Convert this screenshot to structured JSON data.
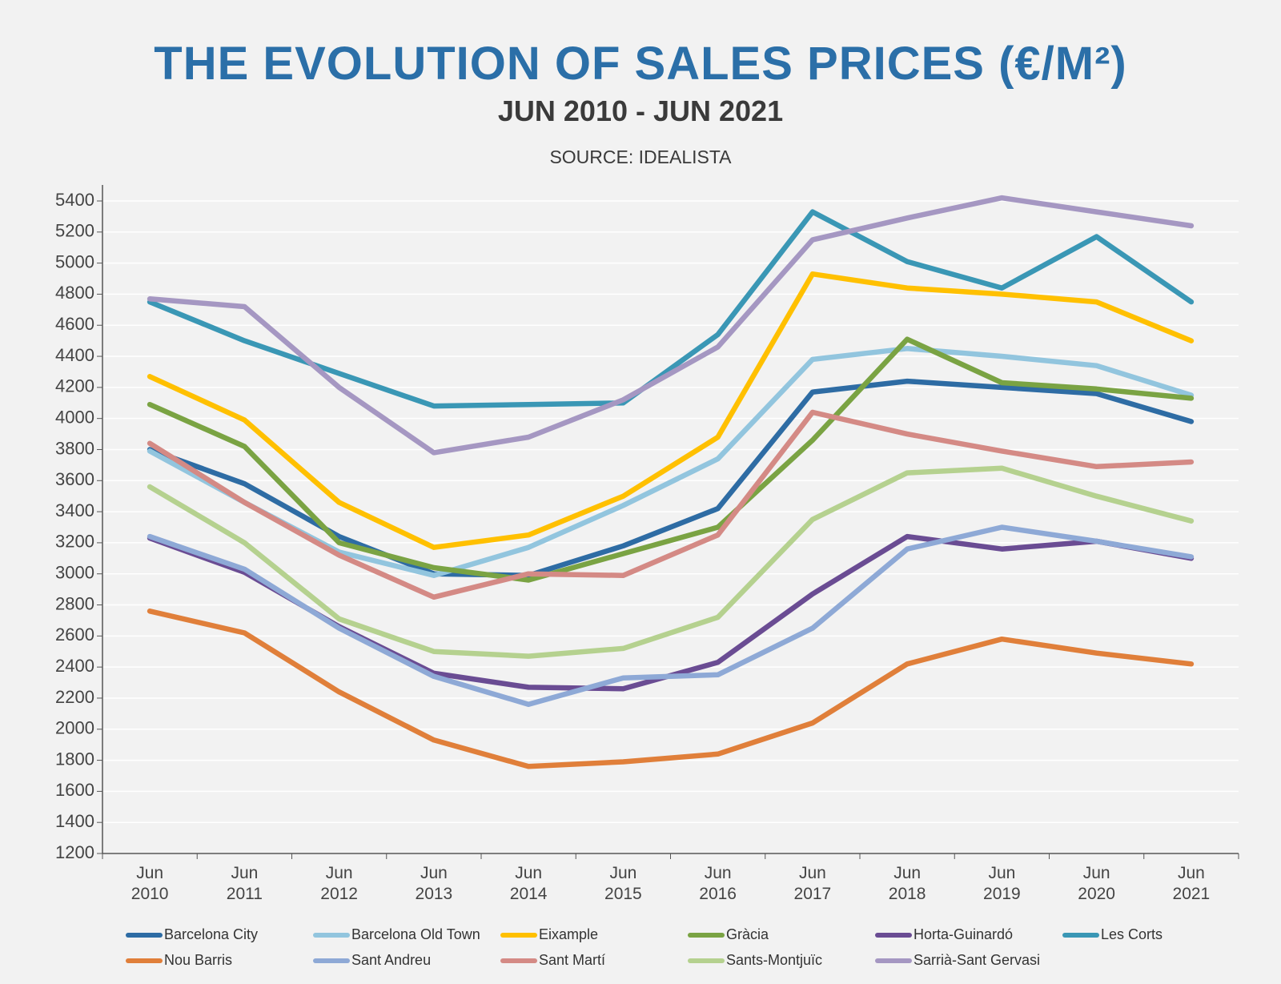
{
  "chart_data": {
    "type": "line",
    "title": "THE EVOLUTION OF SALES PRICES (€/M²)",
    "subtitle": "JUN 2010 - JUN 2021",
    "source": "SOURCE: IDEALISTA",
    "categories": [
      "Jun 2010",
      "Jun 2011",
      "Jun 2012",
      "Jun 2013",
      "Jun 2014",
      "Jun 2015",
      "Jun 2016",
      "Jun 2017",
      "Jun 2018",
      "Jun 2019",
      "Jun 2020",
      "Jun 2021"
    ],
    "ylim": [
      1200,
      5400
    ],
    "yticks": [
      1200,
      1400,
      1600,
      1800,
      2000,
      2200,
      2400,
      2600,
      2800,
      3000,
      3200,
      3400,
      3600,
      3800,
      4000,
      4200,
      4400,
      4600,
      4800,
      5000,
      5200,
      5400
    ],
    "grid": true,
    "legend": "bottom",
    "series": [
      {
        "name": "Barcelona City",
        "color": "#2e6ca4",
        "values": [
          3800,
          3580,
          3240,
          3000,
          2990,
          3180,
          3420,
          4170,
          4240,
          4200,
          4160,
          3980
        ]
      },
      {
        "name": "Barcelona Old Town",
        "color": "#92c5de",
        "values": [
          3790,
          3460,
          3140,
          2990,
          3170,
          3440,
          3740,
          4380,
          4450,
          4400,
          4340,
          4150
        ]
      },
      {
        "name": "Eixample",
        "color": "#ffc000",
        "values": [
          4270,
          3990,
          3460,
          3170,
          3250,
          3500,
          3880,
          4930,
          4840,
          4800,
          4750,
          4500
        ]
      },
      {
        "name": "Gràcia",
        "color": "#7aa343",
        "values": [
          4090,
          3820,
          3200,
          3040,
          2960,
          3130,
          3300,
          3860,
          4510,
          4230,
          4190,
          4130
        ]
      },
      {
        "name": "Horta-Guinardó",
        "color": "#6a4c93",
        "values": [
          3230,
          3010,
          2660,
          2360,
          2270,
          2260,
          2430,
          2870,
          3240,
          3160,
          3210,
          3100
        ]
      },
      {
        "name": "Les Corts",
        "color": "#3a97b5",
        "values": [
          4750,
          4500,
          4290,
          4080,
          4090,
          4100,
          4540,
          5330,
          5010,
          4840,
          5170,
          4750
        ]
      },
      {
        "name": "Nou Barris",
        "color": "#e07f3a",
        "values": [
          2760,
          2620,
          2240,
          1930,
          1760,
          1790,
          1840,
          2040,
          2420,
          2580,
          2490,
          2420
        ]
      },
      {
        "name": "Sant Andreu",
        "color": "#8ea9d6",
        "values": [
          3240,
          3030,
          2650,
          2340,
          2160,
          2330,
          2350,
          2650,
          3160,
          3300,
          3210,
          3110
        ]
      },
      {
        "name": "Sant Martí",
        "color": "#d48a85",
        "values": [
          3840,
          3460,
          3120,
          2850,
          3000,
          2990,
          3250,
          4040,
          3900,
          3790,
          3690,
          3720
        ]
      },
      {
        "name": "Sants-Montjuïc",
        "color": "#b5d18f",
        "values": [
          3560,
          3200,
          2710,
          2500,
          2470,
          2520,
          2720,
          3350,
          3650,
          3680,
          3500,
          3340
        ]
      },
      {
        "name": "Sarrià-Sant Gervasi",
        "color": "#a597c2",
        "values": [
          4770,
          4720,
          4200,
          3780,
          3880,
          4120,
          4460,
          5150,
          5290,
          5420,
          5330,
          5240
        ]
      }
    ]
  }
}
